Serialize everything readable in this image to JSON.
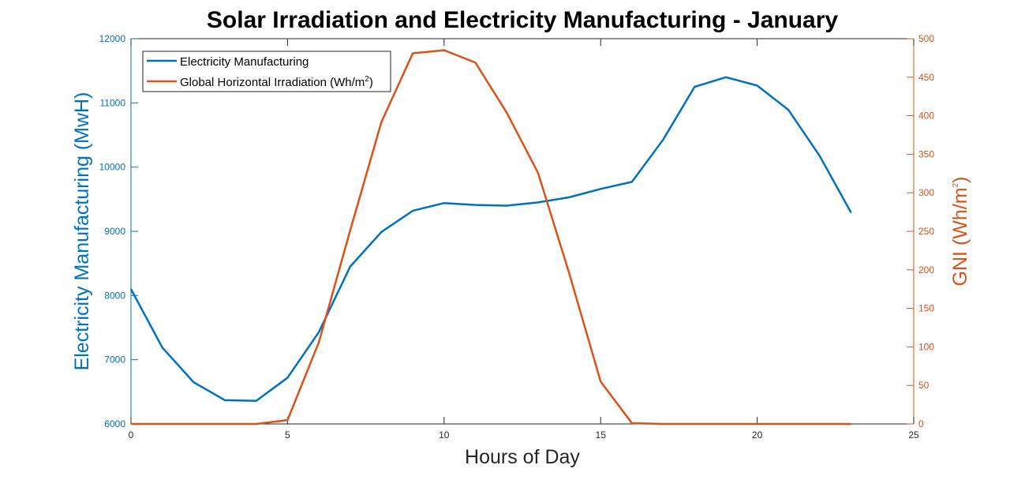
{
  "chart_data": {
    "type": "line",
    "title": "Solar Irradiation and Electricity Manufacturing - January",
    "xlabel": "Hours of Day",
    "ylabel_left": "Electricity Manufacturing (MwH)",
    "ylabel_right_main": "GNI (Wh/m",
    "ylabel_right_sup": "2",
    "ylabel_right_end": ")",
    "xlim": [
      0,
      25
    ],
    "ylim_left": [
      6000,
      12000
    ],
    "ylim_right": [
      0,
      500
    ],
    "x_ticks": [
      0,
      5,
      10,
      15,
      20,
      25
    ],
    "y_left_ticks": [
      6000,
      7000,
      8000,
      9000,
      10000,
      11000,
      12000
    ],
    "y_right_ticks": [
      0,
      50,
      100,
      150,
      200,
      250,
      300,
      350,
      400,
      450,
      500
    ],
    "grid": false,
    "legend_placement": "top-left",
    "legend": [
      {
        "main": "Electricity Manufacturing",
        "sup": "",
        "end": "",
        "color": "#0072BD"
      },
      {
        "main": "Global Horizontal Irradiation (Wh/m",
        "sup": "2",
        "end": ")",
        "color": "#D95319"
      }
    ],
    "x": [
      0,
      1,
      2,
      3,
      4,
      5,
      6,
      7,
      8,
      9,
      10,
      11,
      12,
      13,
      14,
      15,
      16,
      17,
      18,
      19,
      20,
      21,
      22,
      23
    ],
    "series": [
      {
        "name": "Electricity Manufacturing",
        "axis": "left",
        "color": "#0072BD",
        "values": [
          8100,
          7190,
          6650,
          6370,
          6360,
          6720,
          7430,
          8450,
          8990,
          9320,
          9440,
          9410,
          9400,
          9450,
          9530,
          9660,
          9770,
          10430,
          11250,
          11400,
          11270,
          10890,
          10170,
          9290
        ]
      },
      {
        "name": "Global Horizontal Irradiation (Wh/m2)",
        "axis": "right",
        "color": "#D95319",
        "values": [
          0,
          0,
          0,
          0,
          0,
          5,
          106,
          251,
          392,
          481,
          485,
          469,
          404,
          326,
          195,
          55,
          1,
          0,
          0,
          0,
          0,
          0,
          0,
          0
        ]
      }
    ]
  }
}
